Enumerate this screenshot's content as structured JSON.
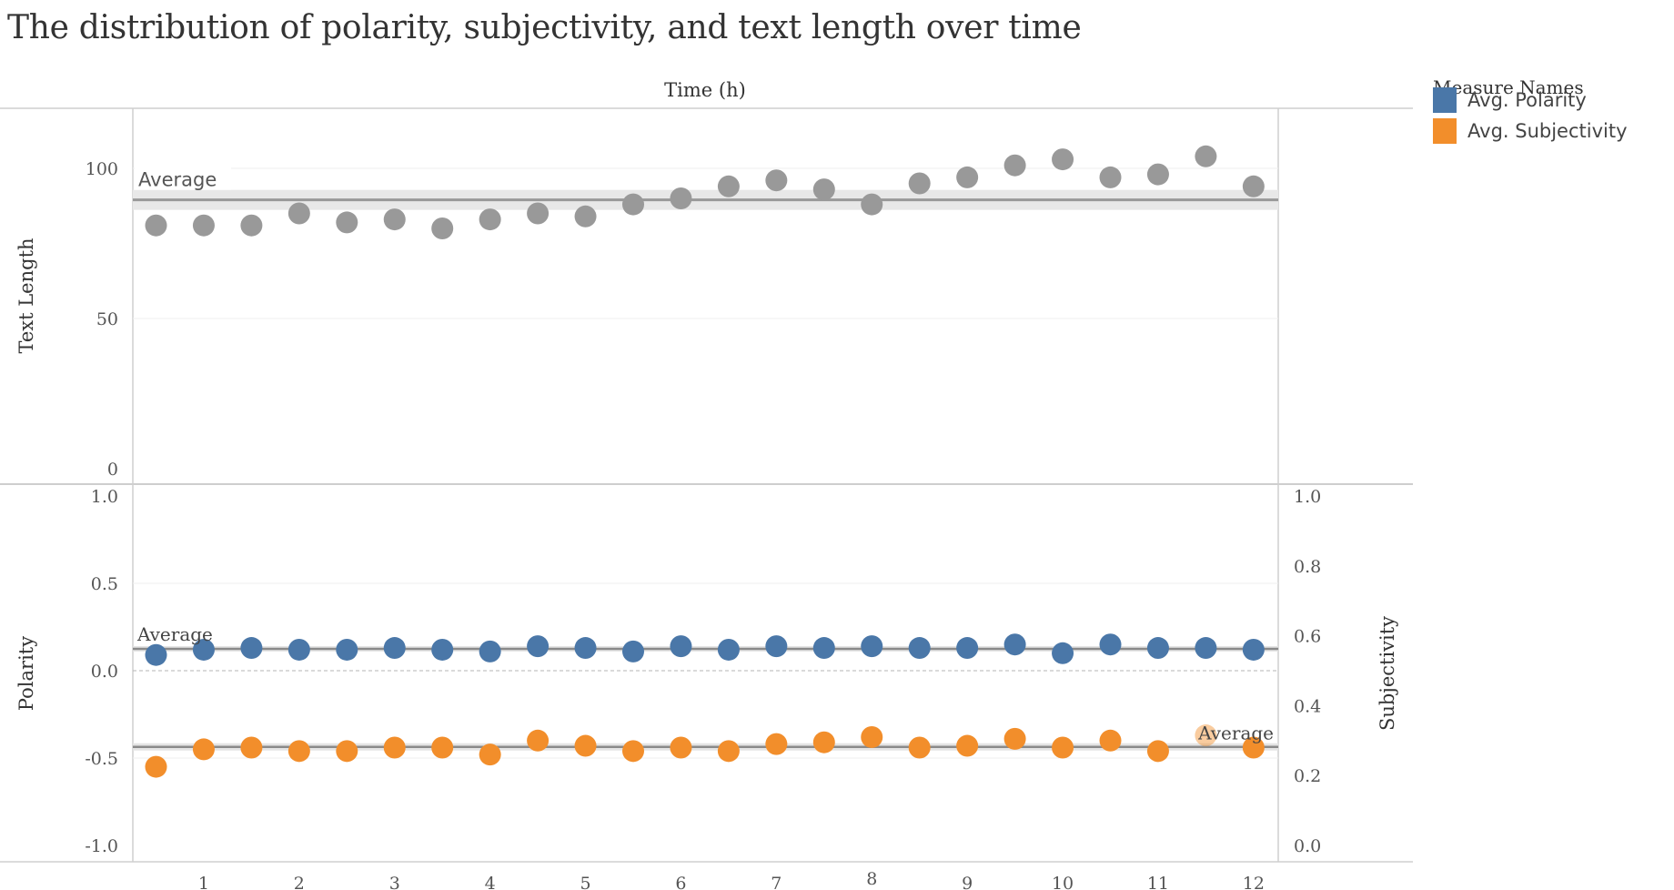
{
  "title": "The distribution of polarity, subjectivity, and text length over time",
  "legend": {
    "title": "Measure Names",
    "items": [
      {
        "label": "Avg. Polarity",
        "color": "#4a77a8"
      },
      {
        "label": "Avg. Subjectivity",
        "color": "#f28e2b"
      }
    ]
  },
  "chart_data": [
    {
      "type": "scatter",
      "xlabel": "Time (h)",
      "ylabel": "Text Length",
      "ylim": [
        0,
        120
      ],
      "yticks": [
        "0",
        "50",
        "100"
      ],
      "x": [
        0.5,
        1,
        1.5,
        2,
        2.5,
        3,
        3.5,
        4,
        4.5,
        5,
        5.5,
        6,
        6.5,
        7,
        7.5,
        8,
        8.5,
        9,
        9.5,
        10,
        10.5,
        11,
        11.5,
        12
      ],
      "series": [
        {
          "values": [
            81,
            81,
            81,
            85,
            82,
            83,
            80,
            83,
            85,
            84,
            88,
            90,
            94,
            96,
            93,
            88,
            95,
            97,
            101,
            103,
            97,
            98,
            104,
            94
          ],
          "color": "#999999"
        }
      ],
      "reference_line": {
        "label": "Average",
        "value": 89.5
      }
    },
    {
      "type": "scatter",
      "xlabel": "Time (h)",
      "ylabel": "Polarity",
      "y2label": "Subjectivity",
      "ylim": [
        -1.0,
        1.0
      ],
      "y2lim": [
        0.0,
        1.0
      ],
      "yticks": [
        "-1.0",
        "-0.5",
        "0.0",
        "0.5",
        "1.0"
      ],
      "y2ticks": [
        "0.0",
        "0.2",
        "0.4",
        "0.6",
        "0.8",
        "1.0"
      ],
      "xticks": [
        "1",
        "2",
        "3",
        "4",
        "5",
        "6",
        "7",
        "8",
        "9",
        "10",
        "11",
        "12"
      ],
      "x": [
        0.5,
        1,
        1.5,
        2,
        2.5,
        3,
        3.5,
        4,
        4.5,
        5,
        5.5,
        6,
        6.5,
        7,
        7.5,
        8,
        8.5,
        9,
        9.5,
        10,
        10.5,
        11,
        11.5,
        12
      ],
      "series": [
        {
          "name": "Avg. Polarity",
          "axis": "left",
          "color": "#4a77a8",
          "values": [
            0.09,
            0.12,
            0.13,
            0.12,
            0.12,
            0.13,
            0.12,
            0.11,
            0.14,
            0.13,
            0.11,
            0.14,
            0.12,
            0.14,
            0.13,
            0.14,
            0.13,
            0.13,
            0.15,
            0.1,
            0.15,
            0.13,
            0.13,
            0.12
          ],
          "reference_line": {
            "label": "Average",
            "value": 0.125
          }
        },
        {
          "name": "Avg. Subjectivity",
          "axis": "right",
          "color": "#f28e2b",
          "values": [
            0.225,
            0.275,
            0.28,
            0.27,
            0.27,
            0.28,
            0.28,
            0.26,
            0.3,
            0.285,
            0.27,
            0.28,
            0.27,
            0.29,
            0.295,
            0.31,
            0.28,
            0.285,
            0.305,
            0.28,
            0.3,
            0.27,
            0.315,
            0.28
          ],
          "reference_line": {
            "label": "Average",
            "value": 0.282
          }
        }
      ]
    }
  ]
}
